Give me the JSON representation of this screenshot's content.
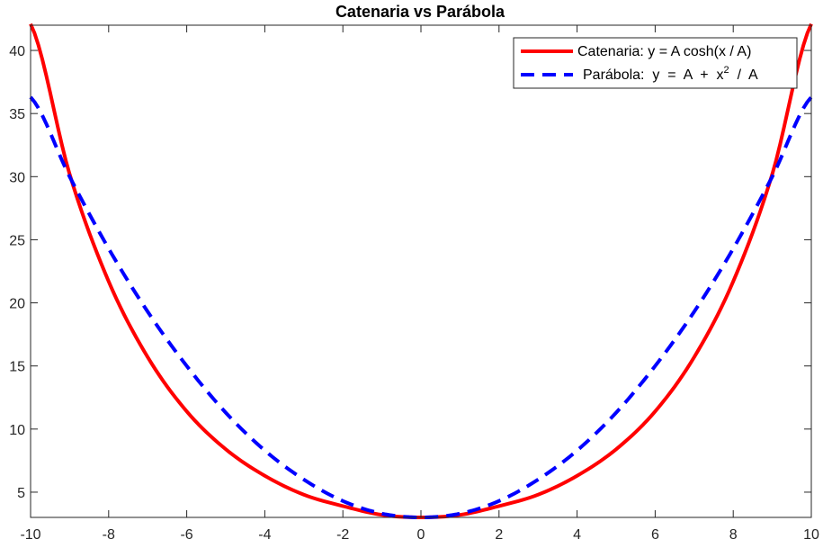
{
  "chart_data": {
    "type": "line",
    "title": "Catenaria vs Parábola",
    "xlabel": "",
    "ylabel": "",
    "xlim": [
      -10,
      10
    ],
    "ylim": [
      3,
      42
    ],
    "xticks": [
      -10,
      -8,
      -6,
      -4,
      -2,
      0,
      2,
      4,
      6,
      8,
      10
    ],
    "yticks": [
      5,
      10,
      15,
      20,
      25,
      30,
      35,
      40
    ],
    "grid": false,
    "legend_position": "top-right",
    "series": [
      {
        "name": "Catenaria: y = A cosh(x / A)",
        "style": "solid",
        "color": "#ff0000",
        "x": [
          -10,
          -9,
          -8,
          -7,
          -6,
          -5,
          -4,
          -3,
          -2,
          -1,
          0,
          1,
          2,
          3,
          4,
          5,
          6,
          7,
          8,
          9,
          10
        ],
        "y": [
          42.1,
          30.2,
          21.7,
          15.7,
          11.4,
          8.4,
          6.3,
          4.8,
          3.9,
          3.2,
          3.0,
          3.2,
          3.9,
          4.8,
          6.3,
          8.4,
          11.4,
          15.7,
          21.7,
          30.2,
          42.1
        ]
      },
      {
        "name": "Parábola",
        "style": "dashed",
        "color": "#0000ff",
        "x": [
          -10,
          -9,
          -8,
          -7,
          -6,
          -5,
          -4,
          -3,
          -2,
          -1,
          0,
          1,
          2,
          3,
          4,
          5,
          6,
          7,
          8,
          9,
          10
        ],
        "y": [
          36.3,
          30.0,
          24.3,
          19.3,
          15.0,
          11.3,
          8.3,
          6.0,
          4.3,
          3.3,
          3.0,
          3.3,
          4.3,
          6.0,
          8.3,
          11.3,
          15.0,
          19.3,
          24.3,
          30.0,
          36.3
        ]
      }
    ]
  },
  "legend": {
    "catenaria": "Catenaria: y = A cosh(x / A)",
    "parabola_prefix": "Parábola:  y  =  A  +  x",
    "parabola_exp": "2",
    "parabola_suffix": "  /  A"
  },
  "colors": {
    "catenaria": "#ff0000",
    "parabola": "#0000ff",
    "axes": "#262626"
  }
}
